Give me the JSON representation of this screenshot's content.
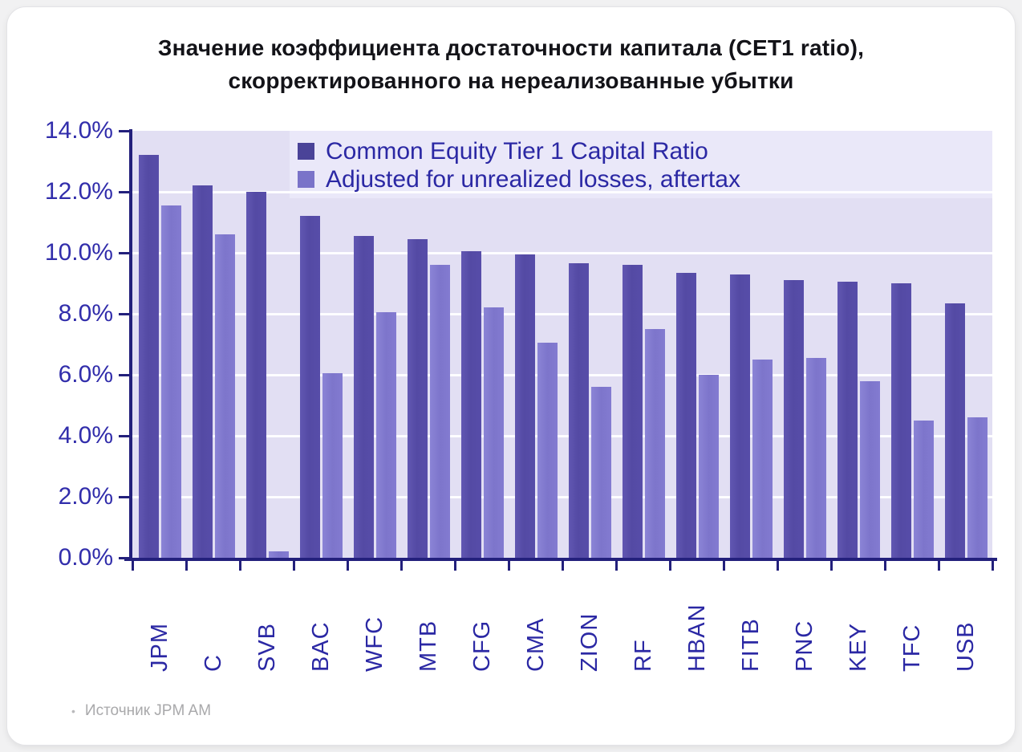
{
  "title": {
    "line1": "Значение коэффициента достаточности капитала (CET1 ratio),",
    "line2": "скорректированного на нереализованные убытки"
  },
  "footer": {
    "bullet": "•",
    "source": "Источник JPM AM"
  },
  "colors": {
    "series_cet1": "#574da9",
    "series_adjusted": "#837bd1",
    "plot_background": "#e2dff3",
    "legend_band": "#eae8f9",
    "gridline": "#fdfdff",
    "axis": "#23207c",
    "axis_text": "#2b28a4",
    "title_text": "#131318",
    "footer_text": "#a9a9ab"
  },
  "chart_data": {
    "type": "bar",
    "title": "Значение коэффициента достаточности капитала (CET1 ratio), скорректированного на нереализованные убытки",
    "categories": [
      "JPM",
      "C",
      "SVB",
      "BAC",
      "WFC",
      "MTB",
      "CFG",
      "CMA",
      "ZION",
      "RF",
      "HBAN",
      "FITB",
      "PNC",
      "KEY",
      "TFC",
      "USB"
    ],
    "series": [
      {
        "name": "Common Equity Tier 1 Capital Ratio",
        "values": [
          13.2,
          12.2,
          12.0,
          11.2,
          10.55,
          10.45,
          10.05,
          9.95,
          9.65,
          9.6,
          9.35,
          9.3,
          9.1,
          9.05,
          9.0,
          8.35
        ]
      },
      {
        "name": "Adjusted for unrealized losses, aftertax",
        "values": [
          11.55,
          10.6,
          0.2,
          6.05,
          8.05,
          9.6,
          8.2,
          7.05,
          5.6,
          7.5,
          6.0,
          6.5,
          6.55,
          5.8,
          4.5,
          4.6
        ]
      }
    ],
    "xlabel": "",
    "ylabel": "",
    "ylim": [
      0,
      14
    ],
    "y_tick_step": 2,
    "y_tick_labels": [
      "14.0%",
      "12.0%",
      "10.0%",
      "8.0%",
      "6.0%",
      "4.0%",
      "2.0%",
      "0.0%"
    ],
    "grid": true,
    "gridline_values": [
      2,
      4,
      6,
      8,
      10,
      12
    ],
    "legend_position": "top-center-inside"
  }
}
